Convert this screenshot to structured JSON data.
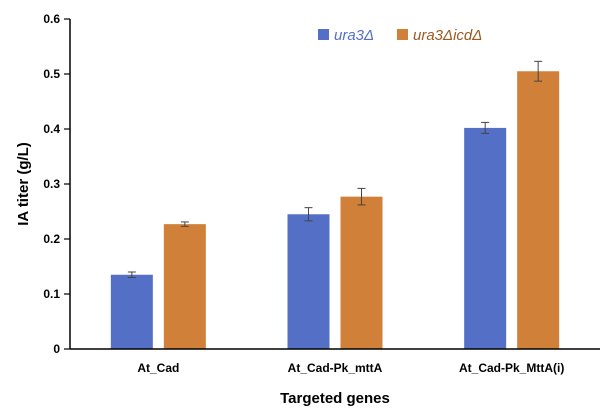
{
  "chart_data": {
    "type": "bar",
    "title": "",
    "xlabel": "Targeted genes",
    "ylabel": "IA titer (g/L)",
    "ylim": [
      0,
      0.6
    ],
    "yticks": [
      "0",
      "0.1",
      "0.2",
      "0.3",
      "0.4",
      "0.5",
      "0.6"
    ],
    "categories": [
      "At_Cad",
      "At_Cad-Pk_mttA",
      "At_Cad-Pk_MttA(i)"
    ],
    "series": [
      {
        "name": "ura3Δ",
        "color": "#5470c6",
        "values": [
          0.135,
          0.245,
          0.402
        ],
        "errors": [
          0.005,
          0.012,
          0.01
        ]
      },
      {
        "name": "ura3ΔicdΔ",
        "color": "#d08039",
        "values": [
          0.227,
          0.277,
          0.505
        ],
        "errors": [
          0.004,
          0.015,
          0.018
        ]
      }
    ],
    "grid": false,
    "legend_position": "top-center"
  }
}
